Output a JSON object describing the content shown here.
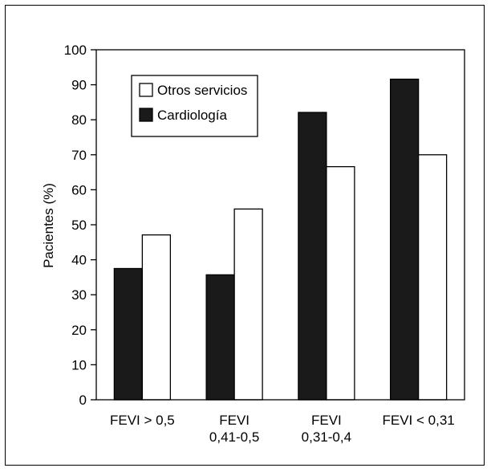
{
  "chart_data": {
    "type": "bar",
    "title": "",
    "xlabel": "",
    "ylabel": "Pacientes (%)",
    "ylim": [
      0,
      100
    ],
    "yticks": [
      0,
      10,
      20,
      30,
      40,
      50,
      60,
      70,
      80,
      90,
      100
    ],
    "categories": [
      [
        "FEVI > 0,5"
      ],
      [
        "FEVI",
        "0,41-0,5"
      ],
      [
        "FEVI",
        "0,31-0,4"
      ],
      [
        "FEVI < 0,31"
      ]
    ],
    "series": [
      {
        "name": "Cardiología",
        "color": "#1a1a1a",
        "values": [
          37.5,
          35.7,
          82.1,
          91.6
        ]
      },
      {
        "name": "Otros servicios",
        "color": "#ffffff",
        "values": [
          47.1,
          54.5,
          66.6,
          70.0
        ]
      }
    ],
    "legend": {
      "placement": "top-left",
      "order": [
        "Otros servicios",
        "Cardiología"
      ]
    },
    "grid": false
  }
}
